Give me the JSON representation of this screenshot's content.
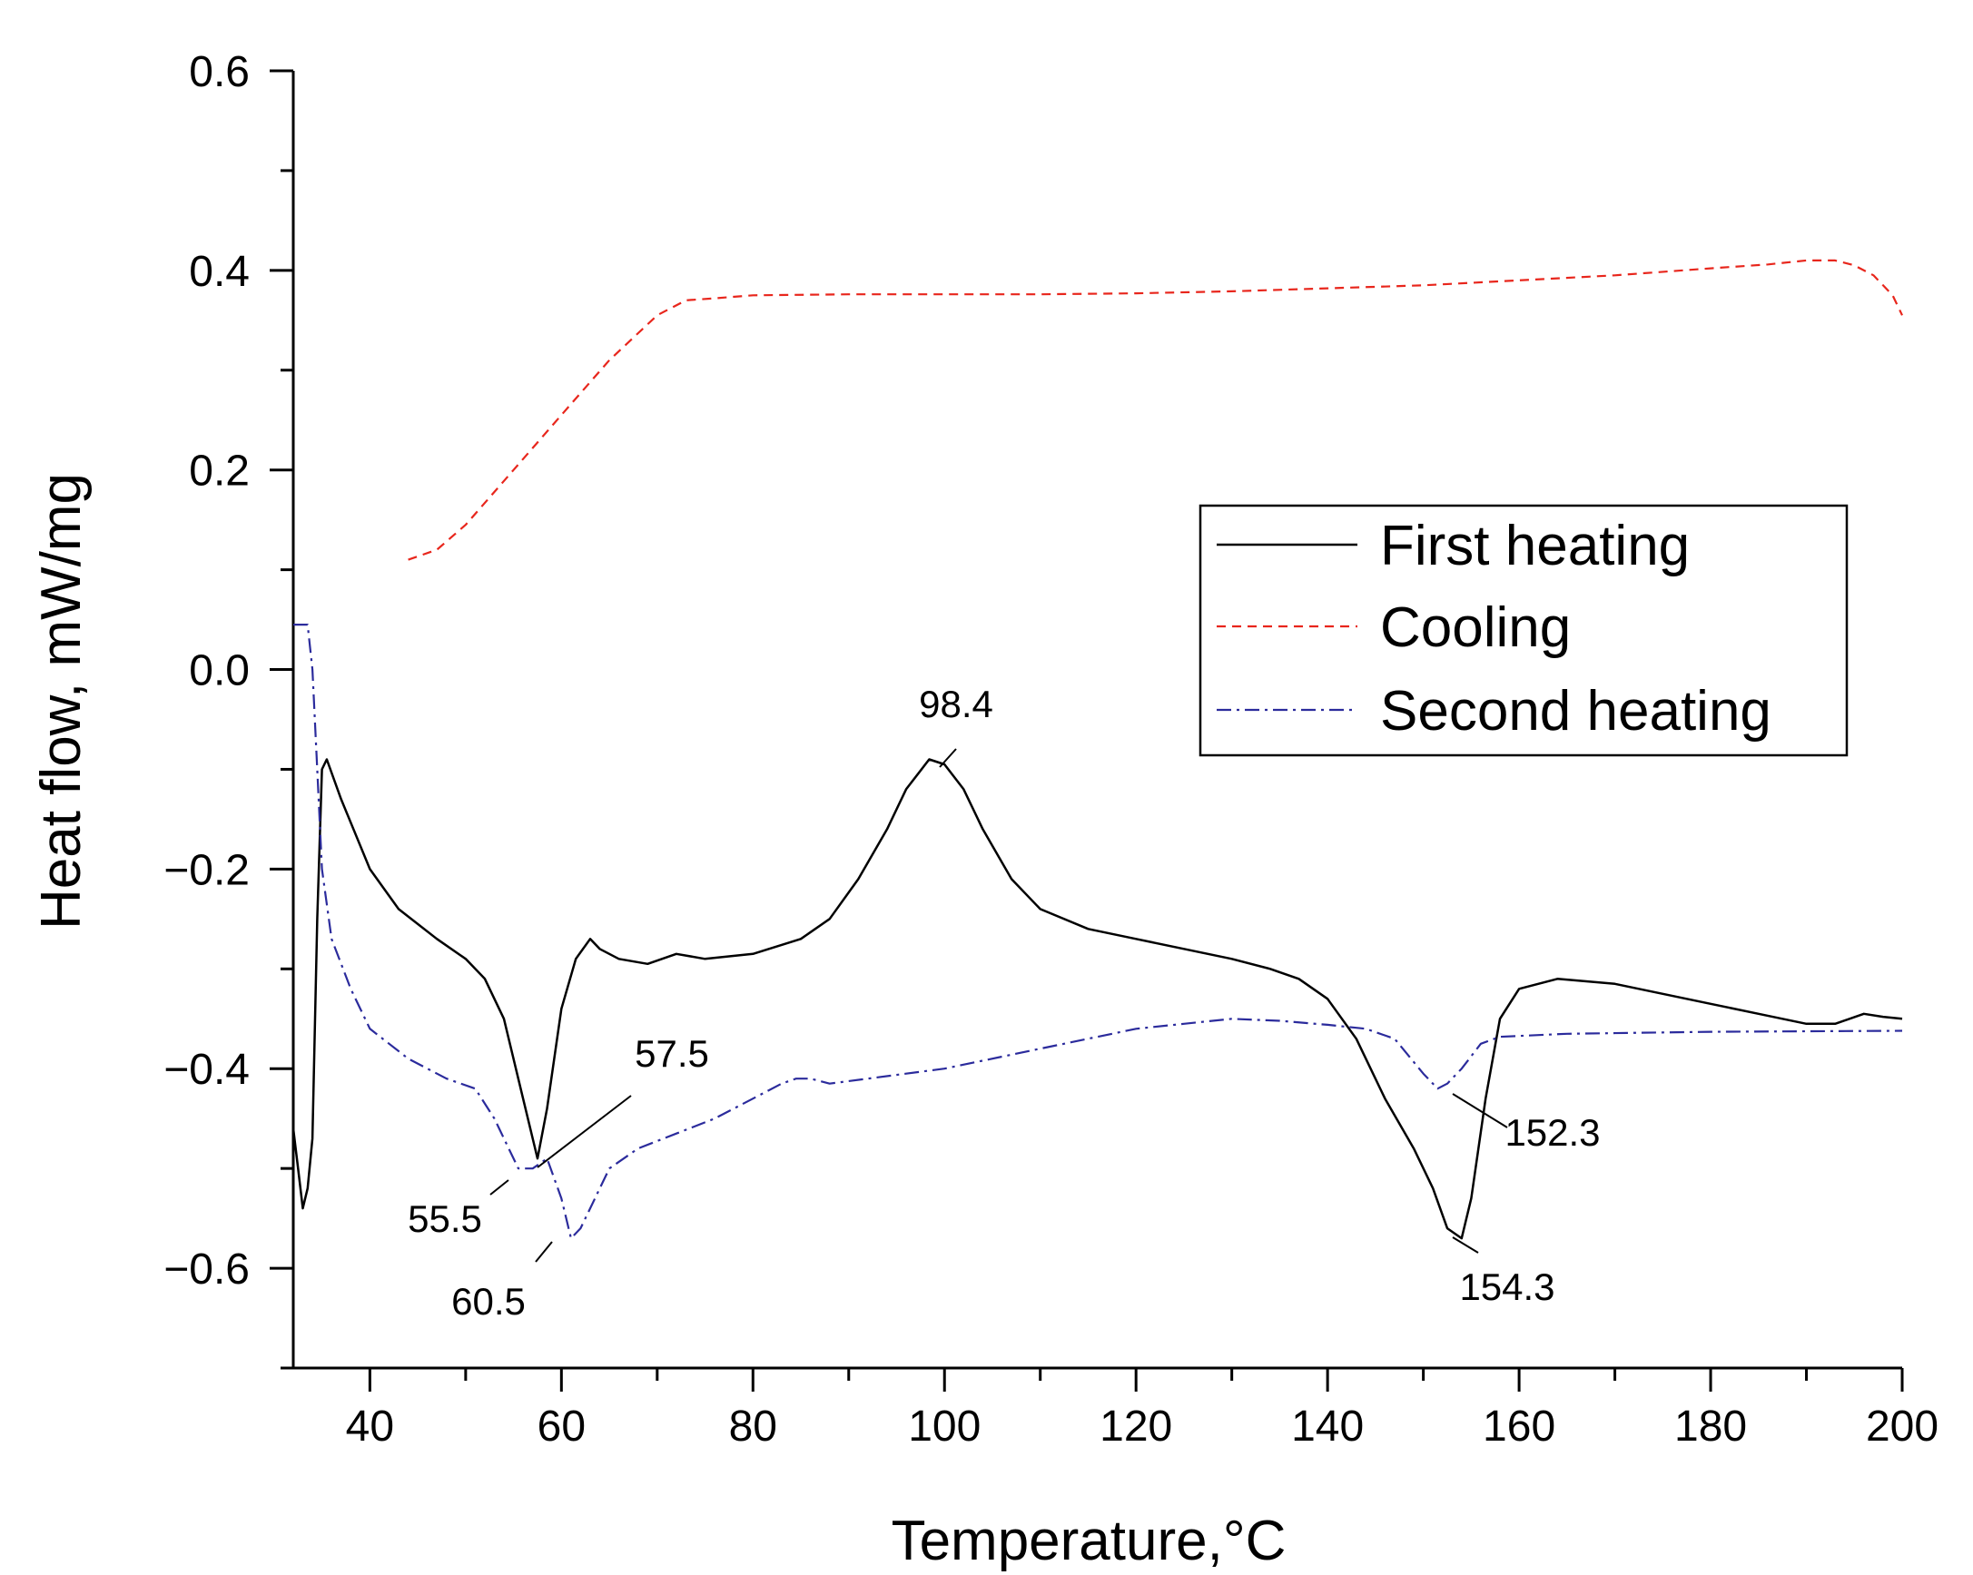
{
  "chart_data": {
    "type": "line",
    "title": "",
    "xlabel": "Temperature,°C",
    "ylabel": "Heat flow, mW/mg",
    "xlim": [
      32,
      200
    ],
    "ylim": [
      -0.7,
      0.6
    ],
    "xticks": [
      40,
      60,
      80,
      100,
      120,
      140,
      160,
      180,
      200
    ],
    "xtick_labels": [
      "40",
      "60",
      "80",
      "100",
      "120",
      "140",
      "160",
      "180",
      "200"
    ],
    "yticks": [
      -0.6,
      -0.4,
      -0.2,
      0.0,
      0.2,
      0.4,
      0.6
    ],
    "ytick_labels": [
      "−0.6",
      "−0.4",
      "−0.2",
      "0.0",
      "0.2",
      "0.4",
      "0.6"
    ],
    "grid": false,
    "legend_position": "right",
    "series": [
      {
        "name": "First heating",
        "style": "solid",
        "color": "#000000",
        "points": [
          [
            32,
            -0.46
          ],
          [
            32.5,
            -0.5
          ],
          [
            33,
            -0.54
          ],
          [
            33.5,
            -0.52
          ],
          [
            34,
            -0.47
          ],
          [
            34.5,
            -0.25
          ],
          [
            35,
            -0.1
          ],
          [
            35.5,
            -0.09
          ],
          [
            37,
            -0.13
          ],
          [
            40,
            -0.2
          ],
          [
            43,
            -0.24
          ],
          [
            47,
            -0.27
          ],
          [
            50,
            -0.29
          ],
          [
            52,
            -0.31
          ],
          [
            54,
            -0.35
          ],
          [
            56,
            -0.43
          ],
          [
            57.5,
            -0.49
          ],
          [
            58.5,
            -0.44
          ],
          [
            60,
            -0.34
          ],
          [
            61.5,
            -0.29
          ],
          [
            63,
            -0.27
          ],
          [
            64,
            -0.28
          ],
          [
            66,
            -0.29
          ],
          [
            69,
            -0.295
          ],
          [
            72,
            -0.285
          ],
          [
            75,
            -0.29
          ],
          [
            80,
            -0.285
          ],
          [
            85,
            -0.27
          ],
          [
            88,
            -0.25
          ],
          [
            91,
            -0.21
          ],
          [
            94,
            -0.16
          ],
          [
            96,
            -0.12
          ],
          [
            98.4,
            -0.09
          ],
          [
            100,
            -0.095
          ],
          [
            102,
            -0.12
          ],
          [
            104,
            -0.16
          ],
          [
            107,
            -0.21
          ],
          [
            110,
            -0.24
          ],
          [
            115,
            -0.26
          ],
          [
            120,
            -0.27
          ],
          [
            125,
            -0.28
          ],
          [
            130,
            -0.29
          ],
          [
            134,
            -0.3
          ],
          [
            137,
            -0.31
          ],
          [
            140,
            -0.33
          ],
          [
            143,
            -0.37
          ],
          [
            146,
            -0.43
          ],
          [
            149,
            -0.48
          ],
          [
            151,
            -0.52
          ],
          [
            152.5,
            -0.56
          ],
          [
            154,
            -0.57
          ],
          [
            155,
            -0.53
          ],
          [
            156.5,
            -0.43
          ],
          [
            158,
            -0.35
          ],
          [
            160,
            -0.32
          ],
          [
            164,
            -0.31
          ],
          [
            170,
            -0.315
          ],
          [
            175,
            -0.325
          ],
          [
            180,
            -0.335
          ],
          [
            185,
            -0.345
          ],
          [
            190,
            -0.355
          ],
          [
            193,
            -0.355
          ],
          [
            196,
            -0.345
          ],
          [
            198,
            -0.348
          ],
          [
            200,
            -0.35
          ]
        ]
      },
      {
        "name": "Cooling",
        "style": "dashed",
        "color": "#e8261c",
        "points": [
          [
            44,
            0.11
          ],
          [
            47,
            0.12
          ],
          [
            50,
            0.145
          ],
          [
            55,
            0.2
          ],
          [
            60,
            0.255
          ],
          [
            65,
            0.31
          ],
          [
            70,
            0.355
          ],
          [
            73,
            0.37
          ],
          [
            76,
            0.372
          ],
          [
            80,
            0.375
          ],
          [
            90,
            0.376
          ],
          [
            100,
            0.376
          ],
          [
            110,
            0.376
          ],
          [
            120,
            0.377
          ],
          [
            130,
            0.379
          ],
          [
            140,
            0.382
          ],
          [
            150,
            0.385
          ],
          [
            160,
            0.39
          ],
          [
            170,
            0.395
          ],
          [
            180,
            0.402
          ],
          [
            186,
            0.406
          ],
          [
            190,
            0.41
          ],
          [
            193,
            0.41
          ],
          [
            195,
            0.405
          ],
          [
            197,
            0.395
          ],
          [
            199,
            0.375
          ],
          [
            200,
            0.355
          ]
        ]
      },
      {
        "name": "Second heating",
        "style": "dash-dot",
        "color": "#2b2b9c",
        "points": [
          [
            32,
            0.045
          ],
          [
            33.5,
            0.045
          ],
          [
            34,
            0.0
          ],
          [
            34.5,
            -0.1
          ],
          [
            35,
            -0.2
          ],
          [
            36,
            -0.27
          ],
          [
            38,
            -0.32
          ],
          [
            40,
            -0.36
          ],
          [
            44,
            -0.39
          ],
          [
            48,
            -0.41
          ],
          [
            51,
            -0.42
          ],
          [
            53,
            -0.45
          ],
          [
            54.5,
            -0.48
          ],
          [
            55.5,
            -0.5
          ],
          [
            57,
            -0.5
          ],
          [
            58.5,
            -0.49
          ],
          [
            60,
            -0.53
          ],
          [
            61,
            -0.57
          ],
          [
            62,
            -0.56
          ],
          [
            63.5,
            -0.53
          ],
          [
            65,
            -0.5
          ],
          [
            68,
            -0.48
          ],
          [
            72,
            -0.465
          ],
          [
            76,
            -0.45
          ],
          [
            80,
            -0.43
          ],
          [
            83,
            -0.415
          ],
          [
            84.5,
            -0.41
          ],
          [
            86,
            -0.41
          ],
          [
            88,
            -0.415
          ],
          [
            92,
            -0.41
          ],
          [
            96,
            -0.405
          ],
          [
            100,
            -0.4
          ],
          [
            110,
            -0.38
          ],
          [
            120,
            -0.36
          ],
          [
            125,
            -0.355
          ],
          [
            130,
            -0.35
          ],
          [
            135,
            -0.352
          ],
          [
            140,
            -0.356
          ],
          [
            144,
            -0.36
          ],
          [
            147,
            -0.37
          ],
          [
            150,
            -0.405
          ],
          [
            151.5,
            -0.42
          ],
          [
            152.5,
            -0.415
          ],
          [
            154,
            -0.4
          ],
          [
            156,
            -0.375
          ],
          [
            158,
            -0.368
          ],
          [
            165,
            -0.365
          ],
          [
            180,
            -0.363
          ],
          [
            200,
            -0.362
          ]
        ]
      }
    ],
    "annotations": [
      {
        "label": "98.4"
      },
      {
        "label": "57.5"
      },
      {
        "label": "55.5"
      },
      {
        "label": "60.5"
      },
      {
        "label": "152.3"
      },
      {
        "label": "154.3"
      }
    ]
  }
}
